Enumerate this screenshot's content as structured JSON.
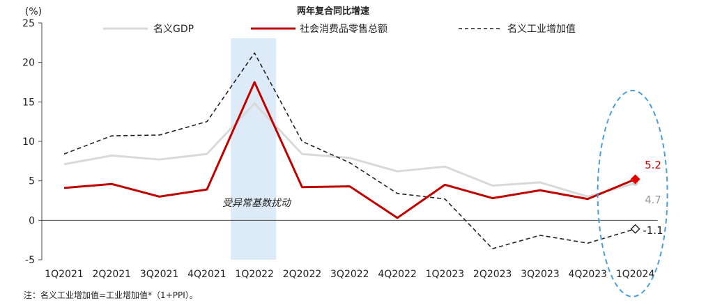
{
  "chart_data": {
    "type": "line",
    "title": "两年复合同比增速",
    "yunit": "(%)",
    "categories": [
      "1Q2021",
      "2Q2021",
      "3Q2021",
      "4Q2021",
      "1Q2022",
      "2Q2022",
      "3Q2022",
      "4Q2022",
      "1Q2023",
      "2Q2023",
      "3Q2023",
      "4Q2023",
      "1Q2024"
    ],
    "ylim": [
      -5,
      25
    ],
    "yticks": [
      -5,
      0,
      5,
      10,
      15,
      20,
      25
    ],
    "grid": false,
    "legend_position": "top",
    "series": [
      {
        "name": "名义GDP",
        "color": "#d9d9d9",
        "style": "solid",
        "values": [
          7.1,
          8.2,
          7.7,
          8.4,
          14.8,
          8.4,
          7.9,
          6.2,
          6.8,
          4.4,
          4.8,
          3.0,
          4.7
        ]
      },
      {
        "name": "社会消费品零售总额",
        "color": "#c00000",
        "style": "solid",
        "values": [
          4.1,
          4.6,
          3.0,
          3.9,
          17.5,
          4.2,
          4.3,
          0.3,
          4.5,
          2.8,
          3.8,
          2.7,
          5.2
        ]
      },
      {
        "name": "名义工业增加值",
        "color": "#222222",
        "style": "dashed",
        "values": [
          8.4,
          10.7,
          10.8,
          12.5,
          21.2,
          10.0,
          7.3,
          3.4,
          2.7,
          -3.6,
          -1.9,
          -2.9,
          -1.1
        ]
      }
    ],
    "end_labels": [
      "5.2",
      "4.7",
      "-1.1"
    ],
    "highlight_band": {
      "category": "1Q2022",
      "color": "#ddeaf7"
    },
    "annotation": "受异常基数扰动",
    "highlight_ellipse": {
      "category": "1Q2024",
      "color": "#4a9edb"
    },
    "note": "注：名义工业增加值=工业增加值*（1+PPI）。"
  }
}
